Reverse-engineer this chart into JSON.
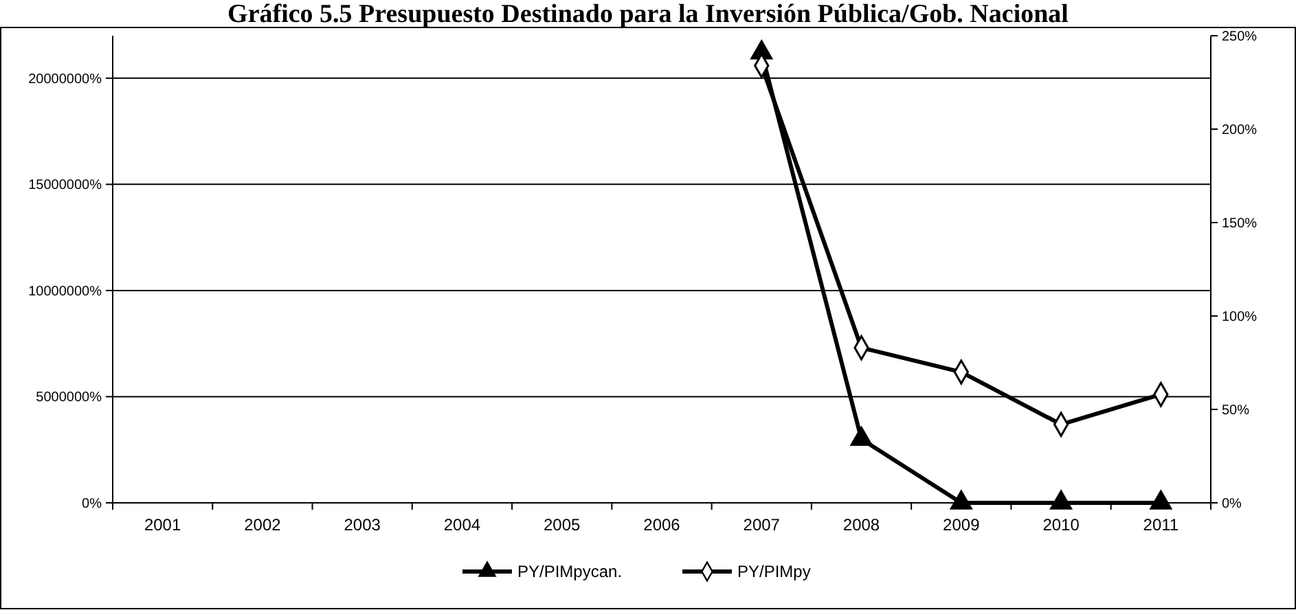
{
  "chart_data": {
    "type": "line",
    "title": "Gráfico 5.5 Presupuesto Destinado para la Inversión Pública/Gob. Nacional",
    "categories": [
      "2001",
      "2002",
      "2003",
      "2004",
      "2005",
      "2006",
      "2007",
      "2008",
      "2009",
      "2010",
      "2011"
    ],
    "series": [
      {
        "name": "PY/PIMpycan.",
        "color": "#000000",
        "marker": "triangle",
        "values": [
          null,
          null,
          null,
          null,
          null,
          null,
          21200000,
          3000000,
          0,
          0,
          0
        ]
      },
      {
        "name": "PY/PIMpy",
        "color": "#000000",
        "marker": "diamond",
        "axis": "y2",
        "values": [
          null,
          null,
          null,
          null,
          null,
          null,
          234,
          83,
          70,
          42,
          58
        ]
      }
    ],
    "ylim": [
      0,
      22000000
    ],
    "yticks": [
      {
        "value": 0,
        "label": "0%"
      },
      {
        "value": 5000000,
        "label": "5000000%"
      },
      {
        "value": 10000000,
        "label": "10000000%"
      },
      {
        "value": 15000000,
        "label": "15000000%"
      },
      {
        "value": 20000000,
        "label": "20000000%"
      }
    ],
    "y2lim": [
      0,
      250
    ],
    "y2ticks": [
      {
        "value": 0,
        "label": "0%"
      },
      {
        "value": 50,
        "label": "50%"
      },
      {
        "value": 100,
        "label": "100%"
      },
      {
        "value": 150,
        "label": "150%"
      },
      {
        "value": 200,
        "label": "200%"
      },
      {
        "value": 250,
        "label": "250%"
      }
    ],
    "grid": "y",
    "legend": "bottom",
    "line_style": "solid"
  }
}
